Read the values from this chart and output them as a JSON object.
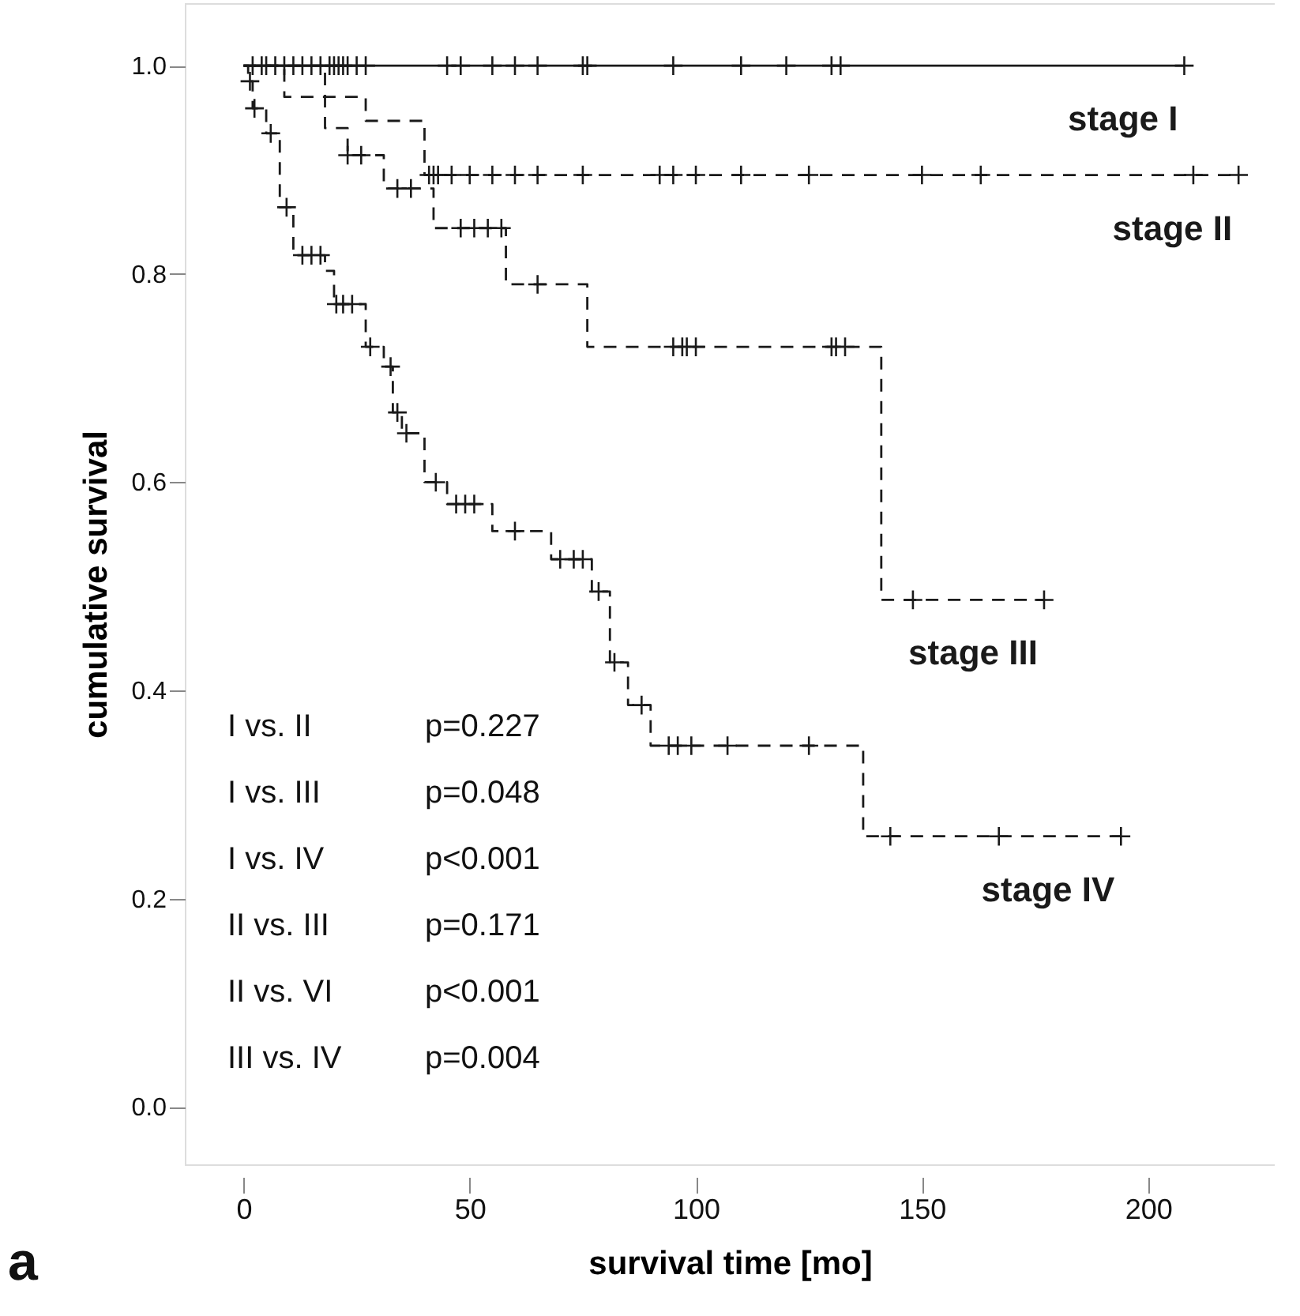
{
  "chart_data": {
    "type": "step",
    "xlabel": "survival time [mo]",
    "ylabel": "cumulative survival",
    "xlim": [
      -13,
      228
    ],
    "ylim": [
      -0.055,
      1.06
    ],
    "xticks": [
      0,
      50,
      100,
      150,
      200
    ],
    "yticks": [
      {
        "value": 0,
        "label": "0.0"
      },
      {
        "value": 0.2,
        "label": "0.2"
      },
      {
        "value": 0.4,
        "label": "0.4"
      },
      {
        "value": 0.6,
        "label": "0.6"
      },
      {
        "value": 0.8,
        "label": "0.8"
      },
      {
        "value": 1,
        "label": "1.0"
      }
    ],
    "grid": false,
    "series": [
      {
        "name": "stage I",
        "line_style": "solid",
        "color": "#1a1a1a",
        "x": [
          0,
          208
        ],
        "values": [
          1.0,
          1.0
        ]
      },
      {
        "name": "stage II",
        "line_style": "dashed",
        "color": "#1a1a1a",
        "x": [
          0,
          9,
          27,
          40,
          220
        ],
        "values": [
          1.0,
          0.97,
          0.947,
          0.895,
          0.895
        ]
      },
      {
        "name": "stage III",
        "line_style": "dashed",
        "color": "#1a1a1a",
        "x": [
          0,
          18,
          23,
          31,
          42,
          58,
          76,
          141,
          177
        ],
        "values": [
          1.0,
          0.94,
          0.914,
          0.882,
          0.844,
          0.79,
          0.73,
          0.487,
          0.487
        ]
      },
      {
        "name": "stage IV",
        "line_style": "dashed",
        "color": "#1a1a1a",
        "x": [
          0,
          1,
          2,
          5,
          8,
          11,
          18,
          20,
          27,
          31,
          33,
          35,
          40,
          45,
          55,
          68,
          77,
          81,
          85,
          90,
          137,
          194
        ],
        "values": [
          1.0,
          0.985,
          0.959,
          0.935,
          0.864,
          0.818,
          0.803,
          0.771,
          0.73,
          0.711,
          0.667,
          0.647,
          0.6,
          0.579,
          0.553,
          0.526,
          0.495,
          0.427,
          0.386,
          0.347,
          0.26,
          0.26
        ]
      },
      {
        "type": "scatter",
        "marker": "cross",
        "color": "#1a1a1a",
        "x": [
          2,
          4,
          5,
          7,
          9,
          11,
          13,
          15,
          17,
          19,
          20,
          21,
          22,
          23,
          25,
          27,
          45,
          48,
          55,
          60,
          65,
          75,
          76,
          95,
          110,
          120,
          130,
          132,
          208
        ],
        "values": [
          1,
          1,
          1,
          1,
          1,
          1,
          1,
          1,
          1,
          1,
          1,
          1,
          1,
          1,
          1,
          1,
          1,
          1,
          1,
          1,
          1,
          1,
          1,
          1,
          1,
          1,
          1,
          1,
          1
        ]
      },
      {
        "type": "scatter",
        "marker": "cross",
        "color": "#1a1a1a",
        "x": [
          41,
          42,
          43,
          46,
          50,
          55,
          60,
          65,
          75,
          92,
          95,
          100,
          110,
          125,
          150,
          163,
          210,
          220
        ],
        "values": [
          0.895,
          0.895,
          0.895,
          0.895,
          0.895,
          0.895,
          0.895,
          0.895,
          0.895,
          0.895,
          0.895,
          0.895,
          0.895,
          0.895,
          0.895,
          0.895,
          0.895,
          0.895
        ]
      },
      {
        "type": "scatter",
        "marker": "cross",
        "color": "#1a1a1a",
        "x": [
          23,
          26,
          34,
          37,
          48,
          51,
          54,
          57,
          65,
          95,
          97,
          98,
          100,
          130,
          131,
          133,
          148,
          177
        ],
        "values": [
          0.914,
          0.914,
          0.882,
          0.882,
          0.844,
          0.844,
          0.844,
          0.844,
          0.79,
          0.73,
          0.73,
          0.73,
          0.73,
          0.73,
          0.73,
          0.73,
          0.487,
          0.487
        ]
      },
      {
        "type": "scatter",
        "marker": "cross",
        "color": "#1a1a1a",
        "x": [
          1.4,
          2.4,
          6,
          9.5,
          13,
          15,
          17,
          20.5,
          22,
          24,
          28,
          32.5,
          34,
          36,
          42.5,
          47,
          49,
          51,
          60,
          70,
          73,
          75,
          78.5,
          82,
          88,
          94,
          96,
          99,
          107,
          125,
          143,
          167,
          194
        ],
        "values": [
          0.985,
          0.959,
          0.935,
          0.864,
          0.818,
          0.818,
          0.818,
          0.771,
          0.771,
          0.771,
          0.73,
          0.711,
          0.667,
          0.647,
          0.6,
          0.579,
          0.579,
          0.579,
          0.553,
          0.526,
          0.526,
          0.526,
          0.495,
          0.427,
          0.386,
          0.347,
          0.347,
          0.347,
          0.347,
          0.347,
          0.26,
          0.26,
          0.26
        ]
      }
    ],
    "annotations": [
      "I vs. II",
      "p=0.227",
      "I vs. III",
      "p=0.048",
      "I vs. IV",
      "p<0.001",
      "II vs. III",
      "p=0.171",
      "II vs. VI",
      "p<0.001",
      "III vs. IV",
      "p=0.004",
      "a"
    ]
  }
}
